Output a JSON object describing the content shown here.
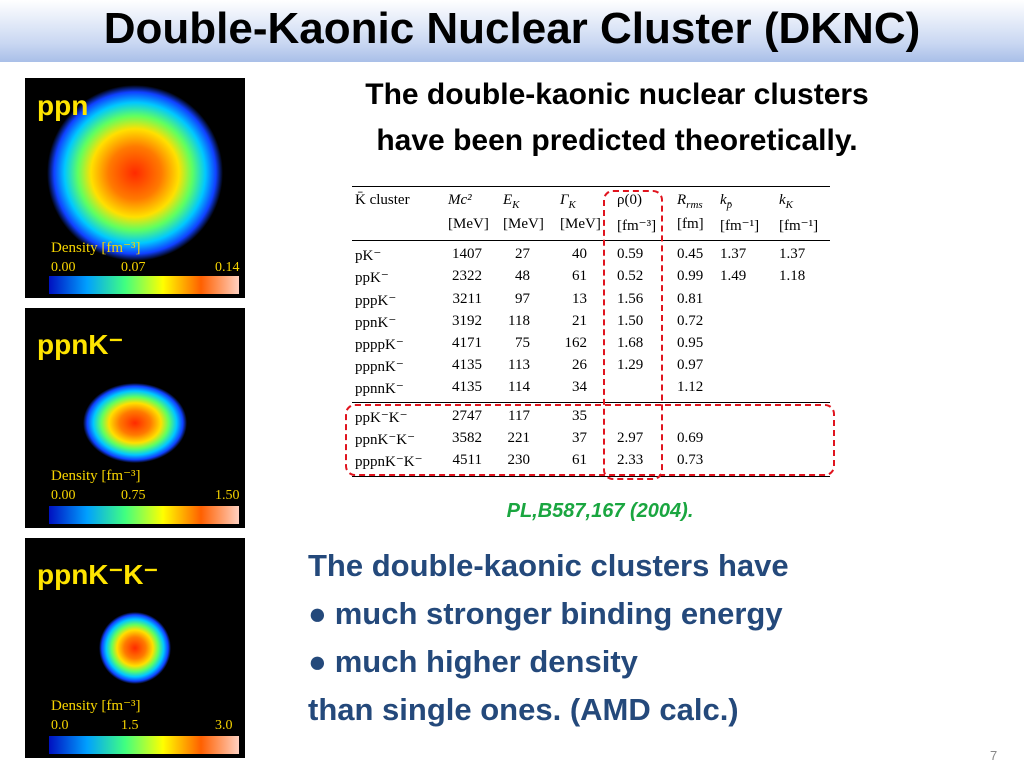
{
  "header": {
    "title": "Double-Kaonic Nuclear Cluster (DKNC)"
  },
  "panels": [
    {
      "label": "ppn",
      "scale_title": "Density [fm⁻³]",
      "scale_ticks": [
        "0.00",
        "0.07",
        "0.14"
      ]
    },
    {
      "label": "ppnK⁻",
      "scale_title": "Density [fm⁻³]",
      "scale_ticks": [
        "0.00",
        "0.75",
        "1.50"
      ]
    },
    {
      "label": "ppnK⁻K⁻",
      "scale_title": "Density [fm⁻³]",
      "scale_ticks": [
        "0.0",
        "1.5",
        "3.0"
      ]
    }
  ],
  "heading": [
    "The double-kaonic nuclear clusters",
    "have been predicted theoretically."
  ],
  "table": {
    "headers": [
      {
        "text": "K̄ cluster"
      },
      {
        "text": "Mc²"
      },
      {
        "text": "E",
        "sub": "K"
      },
      {
        "text": "Γ",
        "sub": "K"
      },
      {
        "text": "ρ(0)"
      },
      {
        "text": "R",
        "sub": "rms"
      },
      {
        "text": "k",
        "sub": "p̄"
      },
      {
        "text": "k",
        "sub": "K"
      }
    ],
    "units": [
      "[MeV]",
      "[MeV]",
      "[MeV]",
      "[fm⁻³]",
      "[fm]",
      "[fm⁻¹]",
      "[fm⁻¹]"
    ],
    "rows": [
      [
        "pK⁻",
        "1407",
        "27",
        "40",
        "0.59",
        "0.45",
        "1.37",
        "1.37"
      ],
      [
        "ppK⁻",
        "2322",
        "48",
        "61",
        "0.52",
        "0.99",
        "1.49",
        "1.18"
      ],
      [
        "pppK⁻",
        "3211",
        "97",
        "13",
        "1.56",
        "0.81"
      ],
      [
        "ppnK⁻",
        "3192",
        "118",
        "21",
        "1.50",
        "0.72"
      ],
      [
        "ppppK⁻",
        "4171",
        "75",
        "162",
        "1.68",
        "0.95"
      ],
      [
        "pppnK⁻",
        "4135",
        "113",
        "26",
        "1.29",
        "0.97"
      ],
      [
        "ppnnK⁻",
        "4135",
        "114",
        "34",
        null,
        "1.12"
      ],
      [
        "ppK⁻K⁻",
        "2747",
        "117",
        "35"
      ],
      [
        "ppnK⁻K⁻",
        "3582",
        "221",
        "37",
        "2.97",
        "0.69"
      ],
      [
        "pppnK⁻K⁻",
        "4511",
        "230",
        "61",
        "2.33",
        "0.73"
      ]
    ]
  },
  "reference": "PL,B587,167 (2004).",
  "body": [
    {
      "text": "The double-kaonic clusters have"
    },
    {
      "bullet": "●",
      "text": "much stronger binding energy"
    },
    {
      "bullet": "●",
      "text": "much higher density"
    },
    {
      "text": "than single ones. (AMD calc.)"
    }
  ],
  "page_number": "7"
}
